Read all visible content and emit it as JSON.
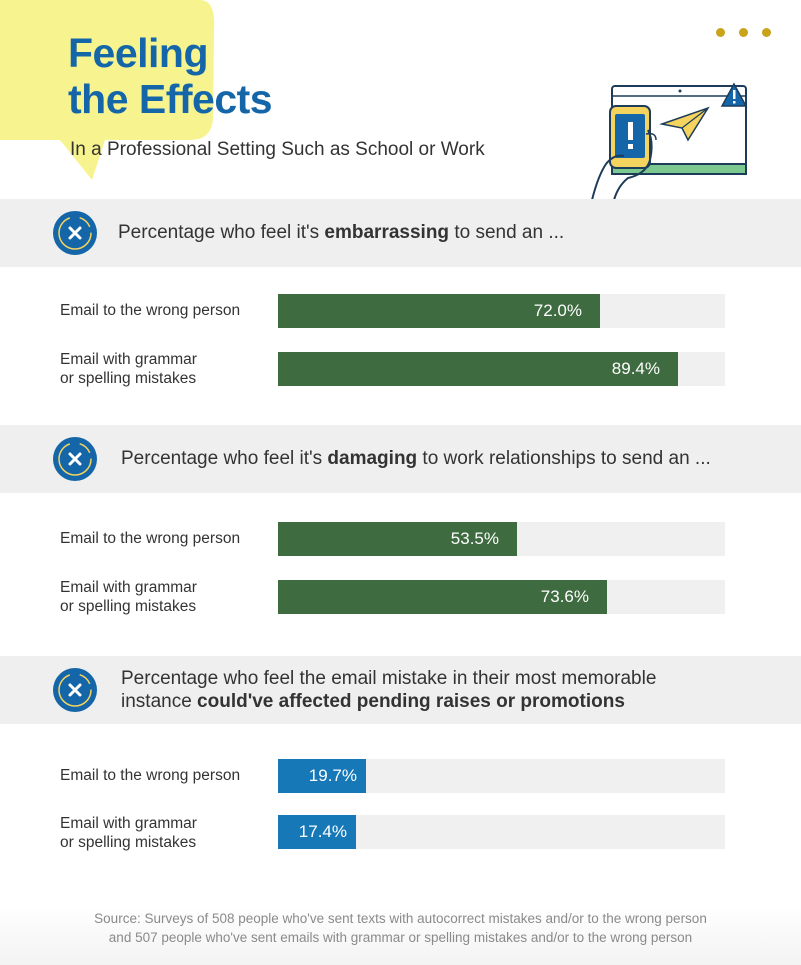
{
  "header": {
    "title_line1": "Feeling",
    "title_line2": "the Effects",
    "subtitle": "In a Professional Setting Such as School or Work",
    "menu_icon": "more-dots-icon",
    "illustration": "laptop-phone-warning-illustration"
  },
  "colors": {
    "title": "#1466a8",
    "green": "#3e6b3f",
    "blue": "#1778b8",
    "track": "#f0f0f0",
    "header_bg": "#efefef",
    "accent_yellow": "#f7f48f",
    "dots": "#c9a31a"
  },
  "sections": [
    {
      "icon": "x-badge-icon",
      "text_before": "Percentage who feel it's ",
      "text_bold": "embarrassing",
      "text_after": " to send an ..."
    },
    {
      "icon": "x-badge-icon",
      "text_before": "Percentage who feel it's ",
      "text_bold": "damaging",
      "text_after": " to work relationships to send an ..."
    },
    {
      "icon": "x-badge-icon",
      "text_line1": "Percentage who feel the email mistake in their most memorable",
      "text_before": "instance ",
      "text_bold": "could've affected pending raises or promotions",
      "text_after": ""
    }
  ],
  "chart_data": [
    {
      "type": "bar",
      "orientation": "horizontal",
      "categories": [
        "Email to the wrong person",
        "Email with grammar or spelling mistakes"
      ],
      "values": [
        72.0,
        89.4
      ],
      "value_labels": [
        "72.0%",
        "89.4%"
      ],
      "xlim": [
        0,
        100
      ],
      "color": "#3e6b3f"
    },
    {
      "type": "bar",
      "orientation": "horizontal",
      "categories": [
        "Email to the wrong person",
        "Email with grammar or spelling mistakes"
      ],
      "values": [
        53.5,
        73.6
      ],
      "value_labels": [
        "53.5%",
        "73.6%"
      ],
      "xlim": [
        0,
        100
      ],
      "color": "#3e6b3f"
    },
    {
      "type": "bar",
      "orientation": "horizontal",
      "categories": [
        "Email to the wrong person",
        "Email with grammar or spelling mistakes"
      ],
      "values": [
        19.7,
        17.4
      ],
      "value_labels": [
        "19.7%",
        "17.4%"
      ],
      "xlim": [
        0,
        100
      ],
      "color": "#1778b8"
    }
  ],
  "row_labels": {
    "wrong_person": "Email to the wrong person",
    "grammar_line1": "Email with grammar",
    "grammar_line2": "or spelling mistakes"
  },
  "footer": {
    "line1": "Source: Surveys of 508 people who've sent texts with autocorrect mistakes and/or to the wrong person",
    "line2": "and 507 people who've sent emails with grammar or spelling mistakes and/or to the wrong person"
  }
}
